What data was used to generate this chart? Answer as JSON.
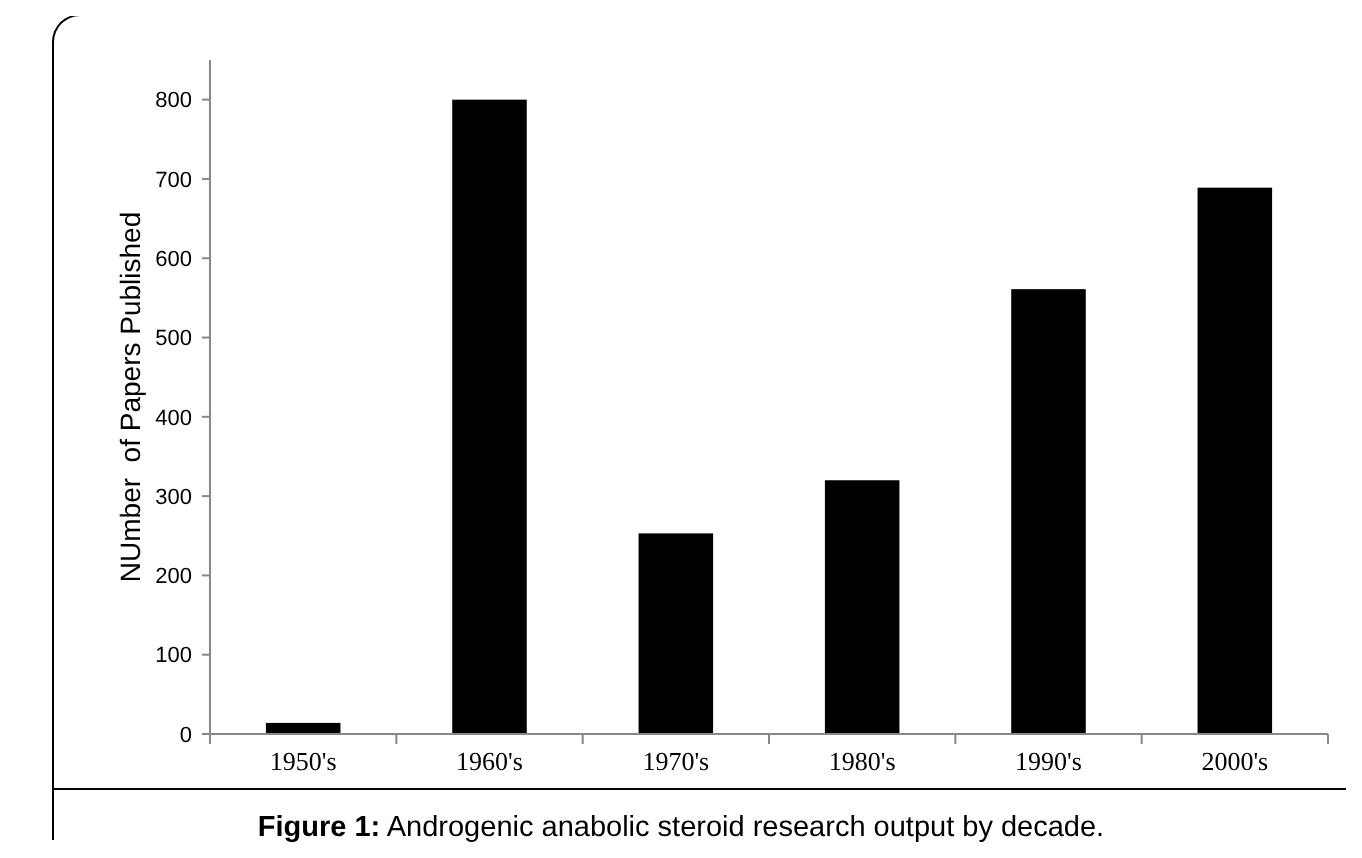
{
  "chart_data": {
    "type": "bar",
    "ylabel": "NUmber  of Papers Published",
    "categories": [
      "1950's",
      "1960's",
      "1970's",
      "1980's",
      "1990's",
      "2000's"
    ],
    "values": [
      14,
      800,
      253,
      320,
      561,
      689
    ],
    "color": "#000000",
    "ylim": [
      0,
      850
    ],
    "yticks": [
      0,
      100,
      200,
      300,
      400,
      500,
      600,
      700,
      800
    ],
    "grid": false,
    "annotations": [
      "Figure 1: Androgenic anabolic steroid research output by decade."
    ]
  }
}
